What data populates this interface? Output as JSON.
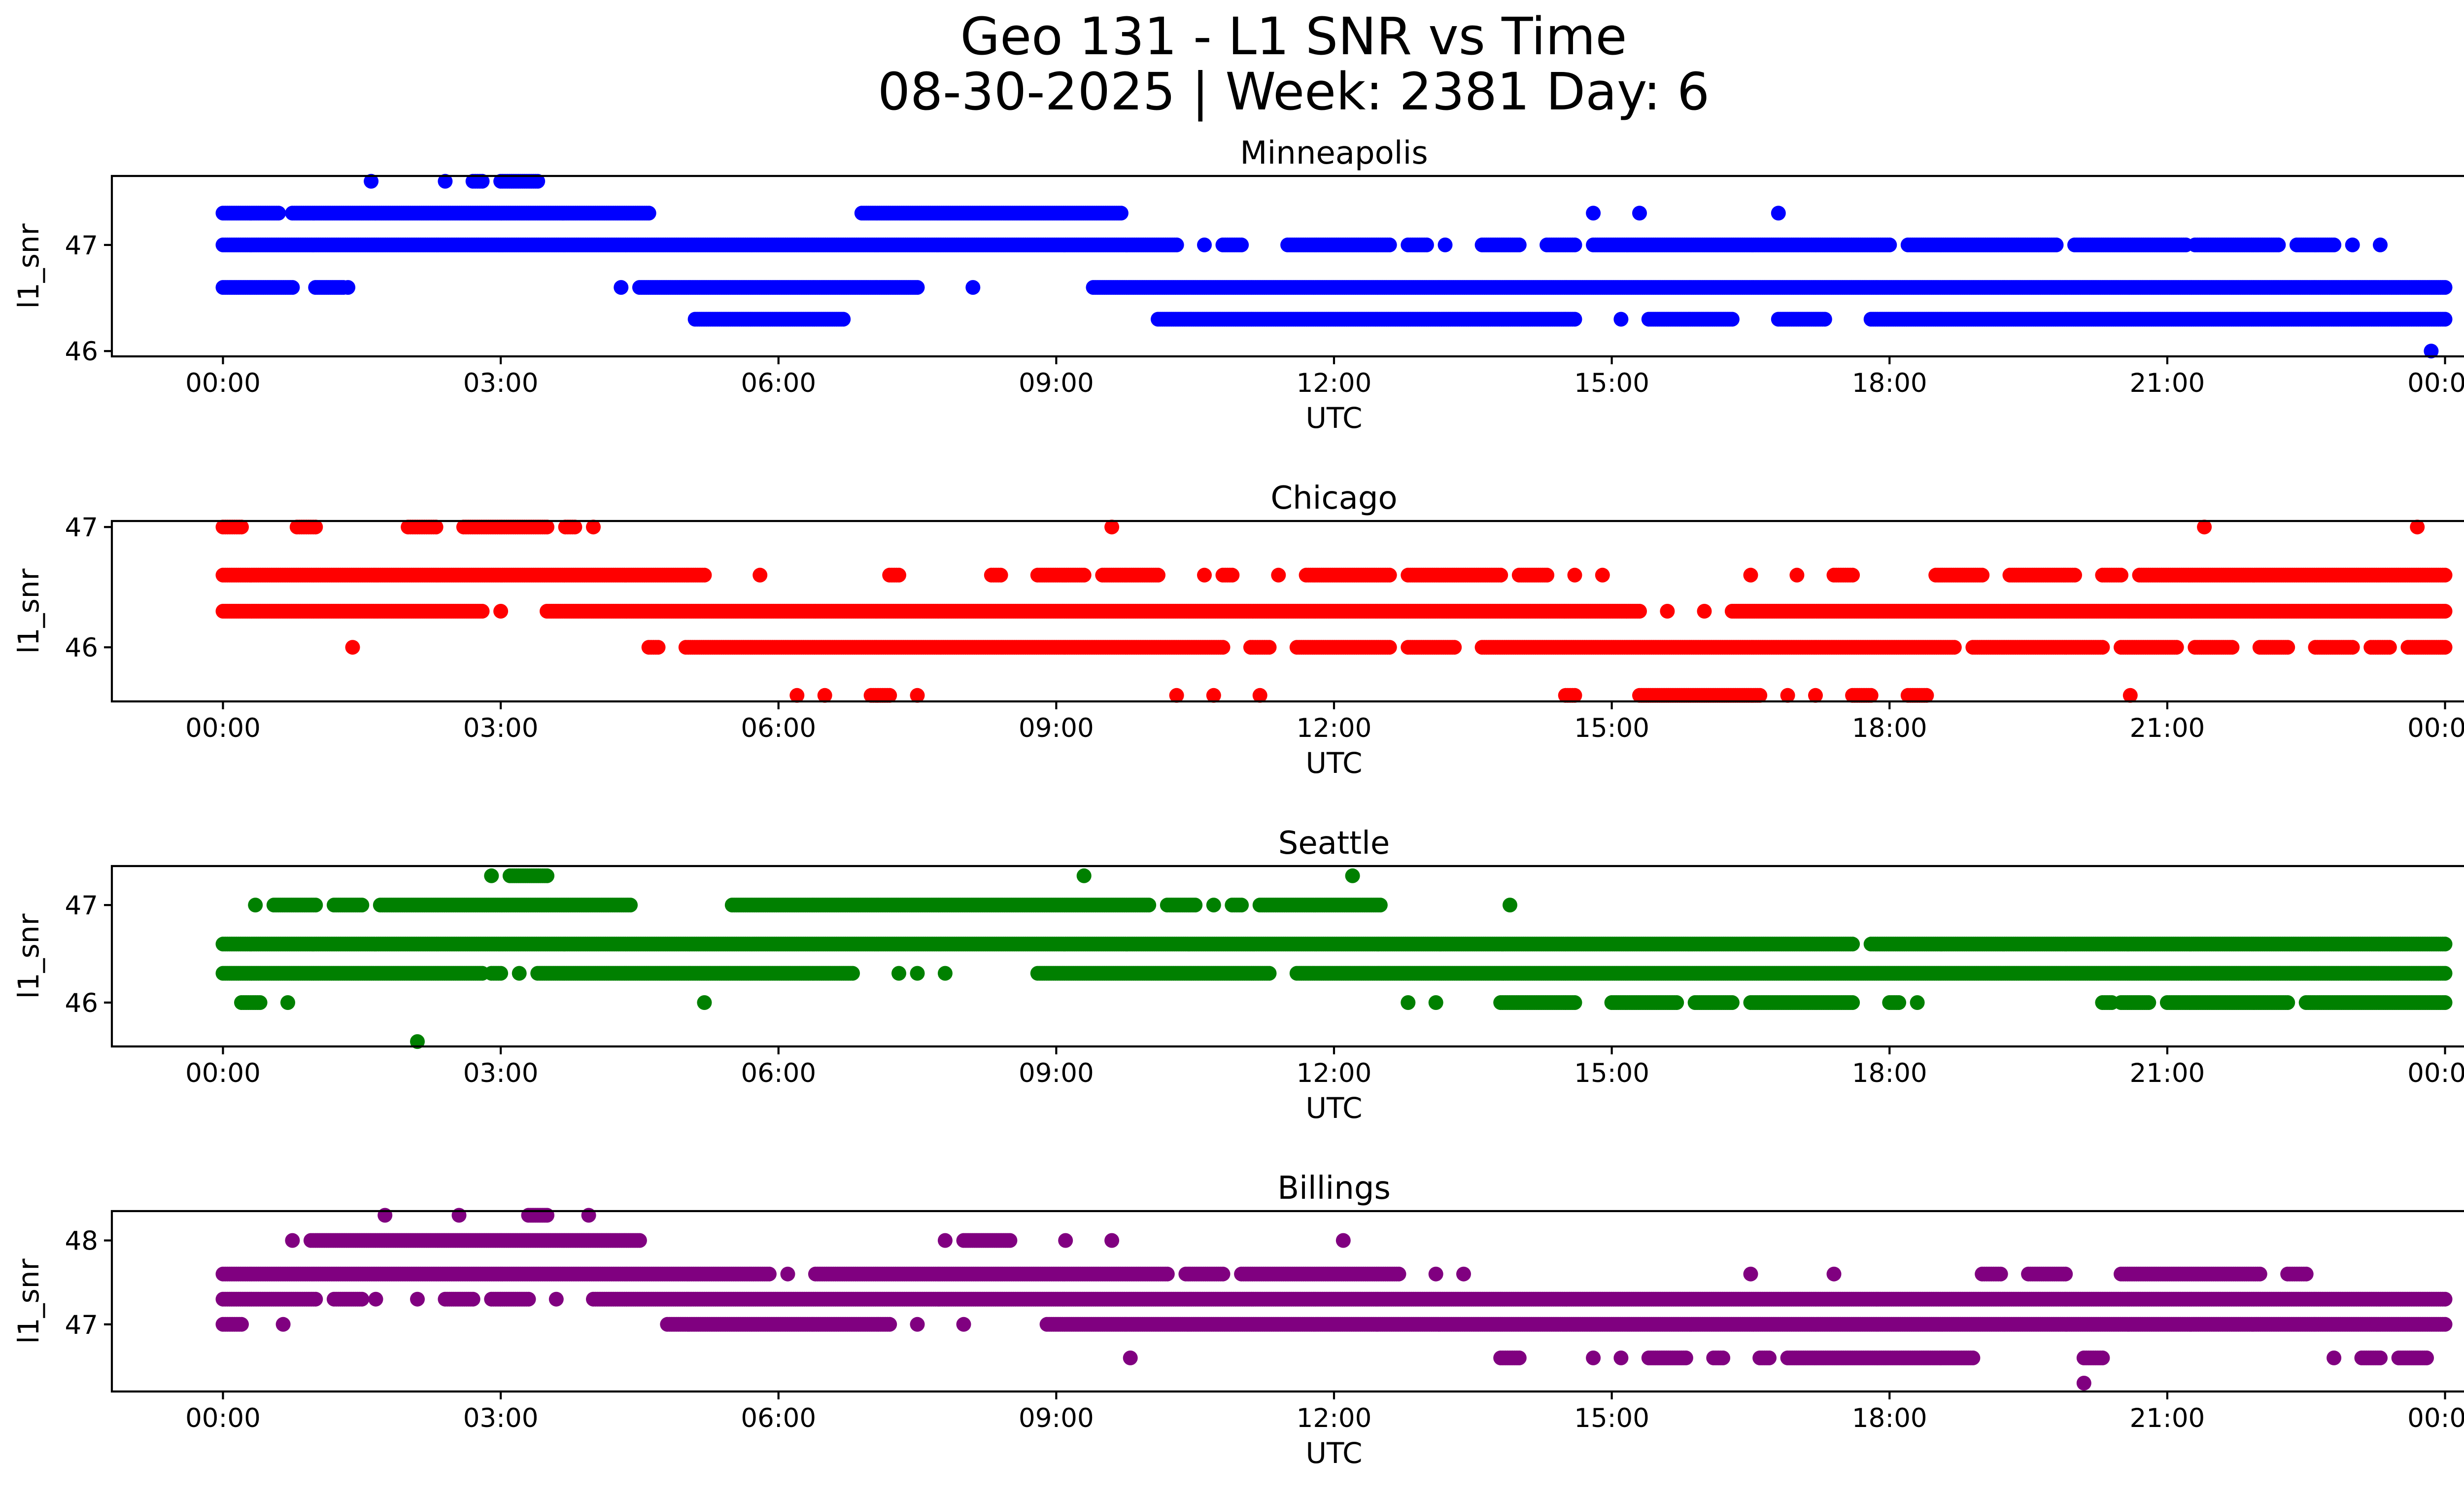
{
  "chart_data": {
    "type": "scatter",
    "title": "Geo 131 - L1 SNR vs Time",
    "subtitle": "08-30-2025 | Week: 2381 Day: 6",
    "x_tick_labels": [
      "00:00",
      "03:00",
      "06:00",
      "09:00",
      "12:00",
      "15:00",
      "18:00",
      "21:00",
      "00:00"
    ],
    "xlim_hours": [
      -1.2,
      25.2
    ],
    "panels": [
      {
        "name": "Minneapolis",
        "color": "#0000ff",
        "xlabel": "UTC",
        "ylabel": "l1_snr",
        "ylim": [
          45.95,
          47.65
        ],
        "yticks": [
          46,
          47
        ],
        "series": [
          {
            "snr": 46.0,
            "segments": [
              [
                23.85,
                23.85
              ]
            ]
          },
          {
            "snr": 46.3,
            "segments": [
              [
                5.1,
                6.7
              ],
              [
                10.1,
                14.6
              ],
              [
                15.1,
                15.1
              ],
              [
                15.4,
                16.3
              ],
              [
                16.8,
                17.3
              ],
              [
                17.8,
                24.0
              ]
            ]
          },
          {
            "snr": 46.6,
            "segments": [
              [
                0.0,
                0.75
              ],
              [
                1.0,
                1.3
              ],
              [
                1.35,
                1.35
              ],
              [
                4.3,
                4.3
              ],
              [
                4.5,
                7.5
              ],
              [
                8.1,
                8.1
              ],
              [
                9.4,
                24.0
              ]
            ]
          },
          {
            "snr": 47.0,
            "segments": [
              [
                0.0,
                10.3
              ],
              [
                10.6,
                10.6
              ],
              [
                10.8,
                11.0
              ],
              [
                11.5,
                12.6
              ],
              [
                12.8,
                13.0
              ],
              [
                13.2,
                13.2
              ],
              [
                13.6,
                14.0
              ],
              [
                14.3,
                14.6
              ],
              [
                14.8,
                18.0
              ],
              [
                18.2,
                19.8
              ],
              [
                20.0,
                21.2
              ],
              [
                21.3,
                22.2
              ],
              [
                22.4,
                22.8
              ],
              [
                23.0,
                23.0
              ],
              [
                23.3,
                23.3
              ]
            ]
          },
          {
            "snr": 47.3,
            "segments": [
              [
                0.0,
                0.6
              ],
              [
                0.75,
                4.6
              ],
              [
                6.9,
                9.7
              ],
              [
                14.8,
                14.8
              ],
              [
                15.3,
                15.3
              ],
              [
                16.8,
                16.8
              ]
            ]
          },
          {
            "snr": 47.6,
            "segments": [
              [
                1.6,
                1.6
              ],
              [
                2.4,
                2.4
              ],
              [
                2.7,
                2.8
              ],
              [
                3.0,
                3.4
              ]
            ]
          }
        ]
      },
      {
        "name": "Chicago",
        "color": "#ff0000",
        "xlabel": "UTC",
        "ylabel": "l1_snr",
        "ylim": [
          45.55,
          47.05
        ],
        "yticks": [
          46,
          47
        ],
        "series": [
          {
            "snr": 45.6,
            "segments": [
              [
                6.2,
                6.2
              ],
              [
                6.5,
                6.5
              ],
              [
                7.0,
                7.2
              ],
              [
                7.5,
                7.5
              ],
              [
                10.3,
                10.3
              ],
              [
                10.7,
                10.7
              ],
              [
                11.2,
                11.2
              ],
              [
                14.5,
                14.6
              ],
              [
                15.3,
                16.6
              ],
              [
                16.9,
                16.9
              ],
              [
                17.2,
                17.2
              ],
              [
                17.6,
                17.8
              ],
              [
                18.2,
                18.4
              ],
              [
                20.6,
                20.6
              ]
            ]
          },
          {
            "snr": 46.0,
            "segments": [
              [
                1.4,
                1.4
              ],
              [
                4.6,
                4.7
              ],
              [
                5.0,
                10.8
              ],
              [
                11.1,
                11.3
              ],
              [
                11.6,
                12.6
              ],
              [
                12.8,
                13.3
              ],
              [
                13.6,
                18.7
              ],
              [
                18.9,
                20.3
              ],
              [
                20.5,
                21.1
              ],
              [
                21.3,
                21.7
              ],
              [
                22.0,
                22.3
              ],
              [
                22.6,
                23.0
              ],
              [
                23.2,
                23.4
              ],
              [
                23.6,
                24.0
              ]
            ]
          },
          {
            "snr": 46.3,
            "segments": [
              [
                0.0,
                2.8
              ],
              [
                3.0,
                3.0
              ],
              [
                3.5,
                15.3
              ],
              [
                15.6,
                15.6
              ],
              [
                16.0,
                16.0
              ],
              [
                16.3,
                24.0
              ]
            ]
          },
          {
            "snr": 46.6,
            "segments": [
              [
                0.0,
                5.2
              ],
              [
                5.8,
                5.8
              ],
              [
                7.2,
                7.3
              ],
              [
                8.3,
                8.4
              ],
              [
                8.8,
                9.3
              ],
              [
                9.5,
                10.1
              ],
              [
                10.6,
                10.6
              ],
              [
                10.8,
                10.9
              ],
              [
                11.4,
                11.4
              ],
              [
                11.7,
                12.6
              ],
              [
                12.8,
                13.8
              ],
              [
                14.0,
                14.3
              ],
              [
                14.6,
                14.6
              ],
              [
                14.9,
                14.9
              ],
              [
                16.5,
                16.5
              ],
              [
                17.0,
                17.0
              ],
              [
                17.4,
                17.6
              ],
              [
                18.5,
                19.0
              ],
              [
                19.3,
                20.0
              ],
              [
                20.3,
                20.5
              ],
              [
                20.7,
                24.0
              ]
            ]
          },
          {
            "snr": 47.0,
            "segments": [
              [
                0.0,
                0.2
              ],
              [
                0.8,
                1.0
              ],
              [
                2.0,
                2.3
              ],
              [
                2.6,
                3.5
              ],
              [
                3.7,
                3.8
              ],
              [
                4.0,
                4.0
              ],
              [
                9.6,
                9.6
              ],
              [
                21.4,
                21.4
              ],
              [
                23.7,
                23.7
              ]
            ]
          }
        ]
      },
      {
        "name": "Seattle",
        "color": "#008000",
        "xlabel": "UTC",
        "ylabel": "l1_snr",
        "ylim": [
          45.55,
          47.4
        ],
        "yticks": [
          46,
          47
        ],
        "series": [
          {
            "snr": 45.6,
            "segments": [
              [
                2.1,
                2.1
              ]
            ]
          },
          {
            "snr": 46.0,
            "segments": [
              [
                0.2,
                0.4
              ],
              [
                0.7,
                0.7
              ],
              [
                5.2,
                5.2
              ],
              [
                12.8,
                12.8
              ],
              [
                13.1,
                13.1
              ],
              [
                13.8,
                14.6
              ],
              [
                15.0,
                15.7
              ],
              [
                15.9,
                16.3
              ],
              [
                16.5,
                17.6
              ],
              [
                18.0,
                18.1
              ],
              [
                18.3,
                18.3
              ],
              [
                20.3,
                20.4
              ],
              [
                20.5,
                20.8
              ],
              [
                21.0,
                22.3
              ],
              [
                22.5,
                24.0
              ]
            ]
          },
          {
            "snr": 46.3,
            "segments": [
              [
                0.0,
                2.8
              ],
              [
                2.9,
                3.0
              ],
              [
                3.2,
                3.2
              ],
              [
                3.4,
                6.8
              ],
              [
                7.3,
                7.3
              ],
              [
                7.5,
                7.5
              ],
              [
                7.8,
                7.8
              ],
              [
                8.8,
                11.3
              ],
              [
                11.6,
                24.0
              ]
            ]
          },
          {
            "snr": 46.6,
            "segments": [
              [
                0.0,
                17.6
              ],
              [
                17.8,
                24.0
              ]
            ]
          },
          {
            "snr": 47.0,
            "segments": [
              [
                0.35,
                0.35
              ],
              [
                0.55,
                1.0
              ],
              [
                1.2,
                1.5
              ],
              [
                1.7,
                4.4
              ],
              [
                5.5,
                10.0
              ],
              [
                10.2,
                10.5
              ],
              [
                10.7,
                10.7
              ],
              [
                10.9,
                11.0
              ],
              [
                11.2,
                12.5
              ],
              [
                13.9,
                13.9
              ]
            ]
          },
          {
            "snr": 47.3,
            "segments": [
              [
                2.9,
                2.9
              ],
              [
                3.1,
                3.5
              ],
              [
                9.3,
                9.3
              ],
              [
                12.2,
                12.2
              ]
            ]
          }
        ]
      },
      {
        "name": "Billings",
        "color": "#800080",
        "xlabel": "UTC",
        "ylabel": "l1_snr",
        "ylim": [
          46.2,
          48.35
        ],
        "yticks": [
          47,
          48
        ],
        "series": [
          {
            "snr": 46.3,
            "segments": [
              [
                20.1,
                20.1
              ]
            ]
          },
          {
            "snr": 46.6,
            "segments": [
              [
                9.8,
                9.8
              ],
              [
                13.8,
                14.0
              ],
              [
                14.8,
                14.8
              ],
              [
                15.1,
                15.1
              ],
              [
                15.4,
                15.8
              ],
              [
                16.1,
                16.2
              ],
              [
                16.6,
                16.7
              ],
              [
                16.9,
                18.9
              ],
              [
                20.1,
                20.3
              ],
              [
                22.8,
                22.8
              ],
              [
                23.1,
                23.3
              ],
              [
                23.5,
                23.8
              ]
            ]
          },
          {
            "snr": 47.0,
            "segments": [
              [
                0.0,
                0.2
              ],
              [
                0.65,
                0.65
              ],
              [
                4.8,
                7.2
              ],
              [
                7.5,
                7.5
              ],
              [
                8.0,
                8.0
              ],
              [
                8.9,
                24.0
              ]
            ]
          },
          {
            "snr": 47.3,
            "segments": [
              [
                0.0,
                1.0
              ],
              [
                1.2,
                1.5
              ],
              [
                1.65,
                1.65
              ],
              [
                2.1,
                2.1
              ],
              [
                2.4,
                2.7
              ],
              [
                2.9,
                3.3
              ],
              [
                3.6,
                3.6
              ],
              [
                4.0,
                24.0
              ]
            ]
          },
          {
            "snr": 47.6,
            "segments": [
              [
                0.0,
                5.9
              ],
              [
                6.1,
                6.1
              ],
              [
                6.4,
                10.2
              ],
              [
                10.4,
                10.8
              ],
              [
                11.0,
                12.7
              ],
              [
                13.1,
                13.1
              ],
              [
                13.4,
                13.4
              ],
              [
                16.5,
                16.5
              ],
              [
                17.4,
                17.4
              ],
              [
                19.0,
                19.2
              ],
              [
                19.5,
                19.9
              ],
              [
                20.5,
                22.0
              ],
              [
                22.3,
                22.5
              ]
            ]
          },
          {
            "snr": 48.0,
            "segments": [
              [
                0.75,
                0.75
              ],
              [
                0.95,
                4.5
              ],
              [
                7.8,
                7.8
              ],
              [
                8.0,
                8.5
              ],
              [
                9.1,
                9.1
              ],
              [
                9.6,
                9.6
              ],
              [
                12.1,
                12.1
              ]
            ]
          },
          {
            "snr": 48.3,
            "segments": [
              [
                1.75,
                1.75
              ],
              [
                2.55,
                2.55
              ],
              [
                3.3,
                3.5
              ],
              [
                3.95,
                3.95
              ]
            ]
          }
        ]
      }
    ]
  }
}
